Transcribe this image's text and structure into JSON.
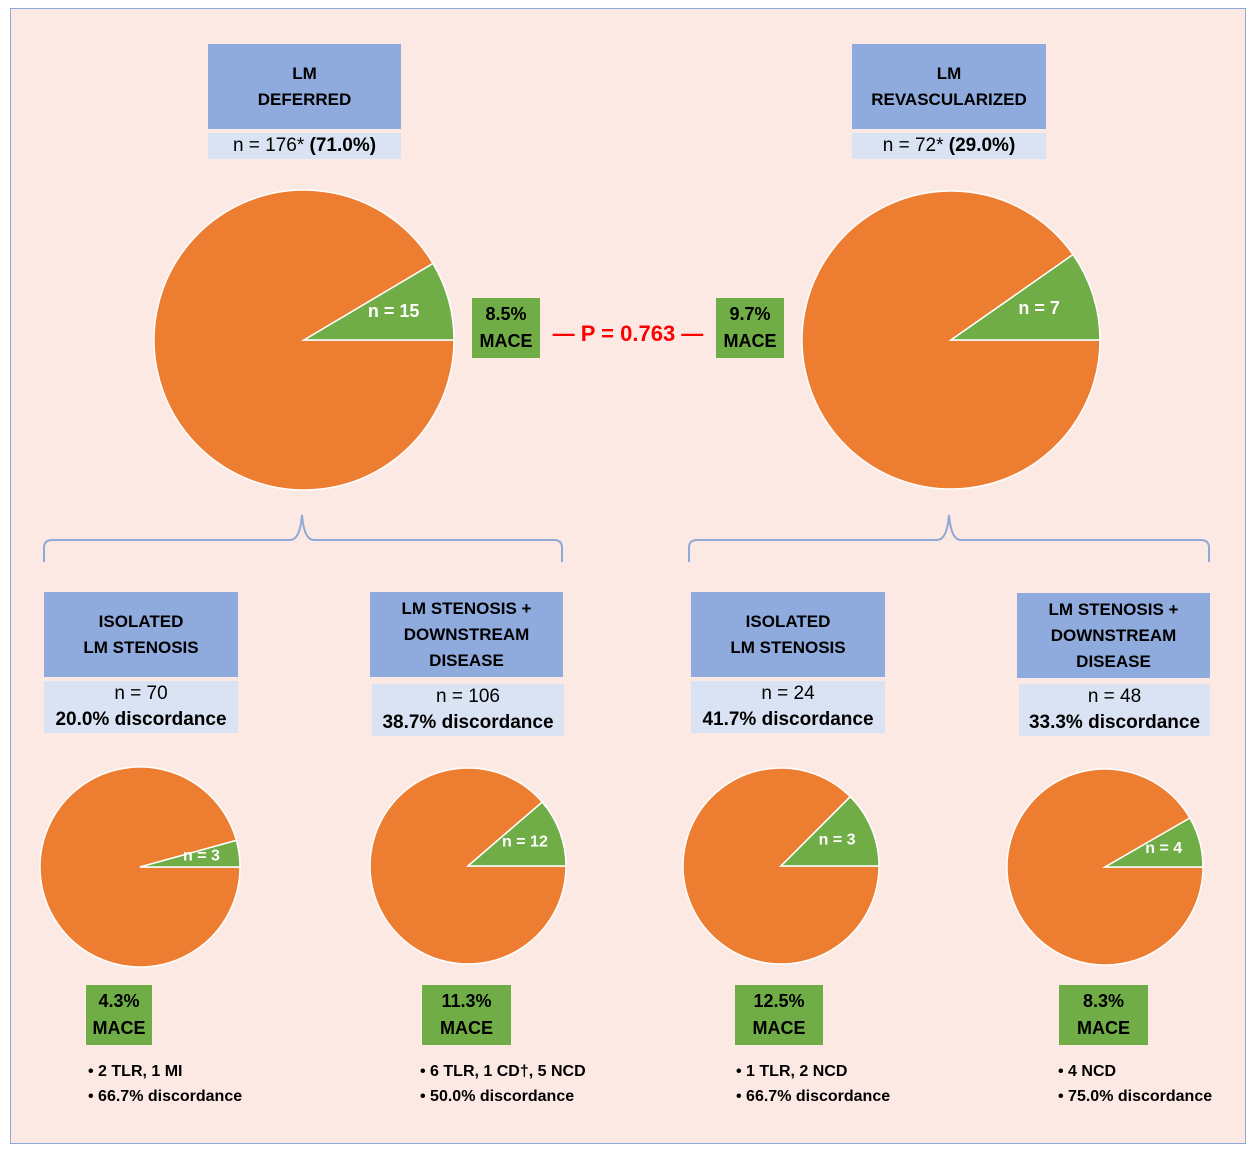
{
  "colors": {
    "header": "#8faadc",
    "subheader": "#dae3f3",
    "no_event": "#ed7d31",
    "mace": "#70ad47",
    "p_value": "#ff0000",
    "background": "#fde9e3"
  },
  "top": {
    "left": {
      "title1": "LM",
      "title2": "DEFERRED",
      "n_text": "n = 176* ",
      "pct": "(71.0%)",
      "slice_label": "n = 15",
      "events": 15,
      "total": 176,
      "mace_pct": "8.5%",
      "mace_label": "MACE"
    },
    "right": {
      "title1": "LM",
      "title2": "REVASCULARIZED",
      "n_text": "n = 72* ",
      "pct": "(29.0%)",
      "slice_label": "n = 7",
      "events": 7,
      "total": 72,
      "mace_pct": "9.7%",
      "mace_label": "MACE"
    },
    "p_value": "— P = 0.763 —"
  },
  "groups": [
    {
      "title": [
        "ISOLATED",
        "LM STENOSIS"
      ],
      "n": "n = 70",
      "discordance": "20.0% discordance",
      "slice_label": "n = 3",
      "events": 3,
      "total": 70,
      "mace_pct": "4.3%",
      "mace_label": "MACE",
      "bullets": [
        "2 TLR, 1 MI",
        "66.7% discordance"
      ]
    },
    {
      "title": [
        "LM STENOSIS +",
        "DOWNSTREAM",
        "DISEASE"
      ],
      "n": "n = 106",
      "discordance": "38.7% discordance",
      "slice_label": "n = 12",
      "events": 12,
      "total": 106,
      "mace_pct": "11.3%",
      "mace_label": "MACE",
      "bullets": [
        "6 TLR, 1 CD†, 5 NCD",
        "50.0% discordance"
      ]
    },
    {
      "title": [
        "ISOLATED",
        "LM STENOSIS"
      ],
      "n": "n = 24",
      "discordance": "41.7% discordance",
      "slice_label": "n = 3",
      "events": 3,
      "total": 24,
      "mace_pct": "12.5%",
      "mace_label": "MACE",
      "bullets": [
        "1 TLR, 2 NCD",
        "66.7% discordance"
      ]
    },
    {
      "title": [
        "LM STENOSIS +",
        "DOWNSTREAM",
        "DISEASE"
      ],
      "n": "n = 48",
      "discordance": "33.3% discordance",
      "slice_label": "n = 4",
      "events": 4,
      "total": 48,
      "mace_pct": "8.3%",
      "mace_label": "MACE",
      "bullets": [
        "4 NCD",
        "75.0% discordance"
      ]
    }
  ]
}
